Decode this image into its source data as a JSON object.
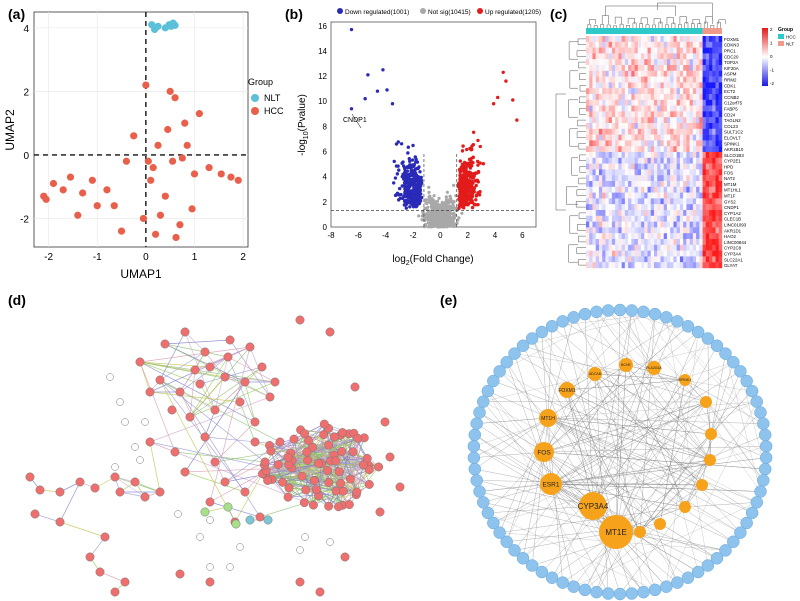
{
  "panels": {
    "a": "(a)",
    "b": "(b)",
    "c": "(c)",
    "d": "(d)",
    "e": "(e)"
  },
  "chart_data": [
    {
      "type": "scatter",
      "panel": "a",
      "xlabel": "UMAP1",
      "ylabel": "UMAP2",
      "xlim": [
        -2.3,
        2.1
      ],
      "ylim": [
        -2.9,
        4.5
      ],
      "xticks": [
        -2,
        -1,
        0,
        1,
        2
      ],
      "yticks": [
        -2,
        0,
        2,
        4
      ],
      "legend_title": "Group",
      "legend_placement": "right",
      "series": [
        {
          "name": "NLT",
          "color": "#5bc0d8",
          "x": [
            0.12,
            0.18,
            0.25,
            0.4,
            0.48,
            0.52,
            0.56,
            0.6
          ],
          "y": [
            4.1,
            3.95,
            4.05,
            4.0,
            4.1,
            4.05,
            4.15,
            4.08
          ]
        },
        {
          "name": "HCC",
          "color": "#e8604c",
          "x": [
            -2.1,
            -2.05,
            -1.9,
            -1.7,
            -1.55,
            -1.4,
            -1.3,
            -1.1,
            -1.0,
            -0.8,
            -0.65,
            -0.5,
            -0.4,
            -0.25,
            0.0,
            0.05,
            0.1,
            0.15,
            0.2,
            0.25,
            0.3,
            0.4,
            0.45,
            0.55,
            0.6,
            0.62,
            0.7,
            0.75,
            0.8,
            0.85,
            0.95,
            1.0,
            1.1,
            1.3,
            1.55,
            1.75,
            1.9,
            -0.05,
            0.5
          ],
          "y": [
            -1.3,
            -1.4,
            -0.9,
            -1.1,
            -0.7,
            -1.9,
            -1.2,
            -0.8,
            -1.6,
            -1.1,
            -1.6,
            -2.4,
            -0.2,
            0.6,
            2.2,
            -0.2,
            -0.8,
            -0.4,
            -2.5,
            0.3,
            -1.9,
            -1.3,
            0.8,
            -0.2,
            1.8,
            -2.6,
            -2.2,
            -0.1,
            1.0,
            0.3,
            -1.7,
            -0.6,
            1.3,
            -0.4,
            -0.6,
            -0.7,
            -0.8,
            -2.0,
            2.0
          ]
        }
      ]
    },
    {
      "type": "scatter",
      "panel": "b",
      "xlabel": "log2(Fold Change)",
      "ylabel": "-log10(Pvalue)",
      "xlim": [
        -8,
        7
      ],
      "ylim": [
        0,
        16.3
      ],
      "xticks": [
        -8,
        -6,
        -4,
        -2,
        0,
        2,
        4,
        6
      ],
      "yticks": [
        0,
        2,
        4,
        6,
        8,
        10,
        12,
        14,
        16
      ],
      "legend_placement": "top",
      "series": [
        {
          "name": "Down regulated(1001)",
          "color": "#2a2ab8"
        },
        {
          "name": "Not sig(10415)",
          "color": "#a8a8a8"
        },
        {
          "name": "Up regulated(1205)",
          "color": "#e31b1b"
        }
      ],
      "annotations": [
        {
          "text": "CNDP1",
          "x": -6.5,
          "y": 9.4
        }
      ]
    },
    {
      "type": "heatmap",
      "panel": "c",
      "legend_title": "Group",
      "legend_entries": [
        {
          "name": "HCC",
          "color": "#2ec9c9"
        },
        {
          "name": "NLT",
          "color": "#f29a8a"
        }
      ],
      "colorbar_ticks": [
        "2",
        "1",
        "0",
        "-1",
        "-2"
      ],
      "rows": [
        "FOXM1",
        "CDKN3",
        "PRC1",
        "CDC20",
        "TOP2A",
        "KIF20A",
        "ASPM",
        "RRM2",
        "CDK1",
        "ECT2",
        "CCNB2",
        "C12orf75",
        "FABP5",
        "CD24",
        "TAGLN2",
        "COL23",
        "SULT1C2",
        "ELOVL7",
        "SPINK1",
        "AKR1B10",
        "SLCO1B3",
        "CYP2E1",
        "HPD",
        "FOS",
        "NAT2",
        "MT1M",
        "MT1HL1",
        "MT1F",
        "GYS2",
        "CNDP1",
        "CYP1A2",
        "CLEC1B",
        "LINC01093",
        "AKR1D1",
        "HAO2",
        "LINC00844",
        "CYP2C8",
        "CYP3A4",
        "SLC22A1",
        "GLYAT"
      ]
    }
  ],
  "network_e": {
    "hub_labels": [
      "MT1E",
      "CYP3A4",
      "ESR1",
      "FOS",
      "MT1H",
      "FOXM1",
      "ADCAB",
      "BCHE",
      "PLA2G4A",
      "SPINK1"
    ]
  }
}
